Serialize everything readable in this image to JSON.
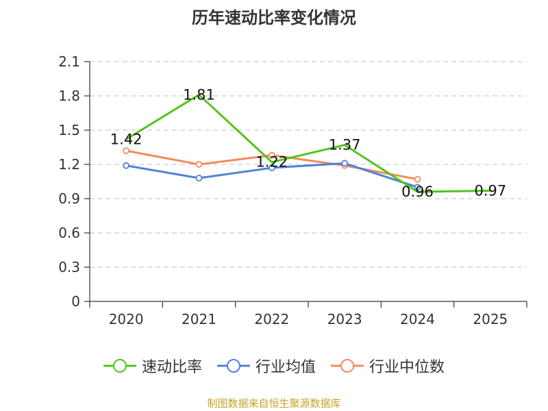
{
  "chart_data": {
    "type": "line",
    "title": "历年速动比率变化情况",
    "categories": [
      "2020",
      "2021",
      "2022",
      "2023",
      "2024",
      "2025"
    ],
    "y_ticks": [
      "0",
      "0.3",
      "0.6",
      "0.9",
      "1.2",
      "1.5",
      "1.8",
      "2.1"
    ],
    "ylim": [
      0,
      2.1
    ],
    "grid": true,
    "legend_position": "bottom",
    "series": [
      {
        "name": "速动比率",
        "color": "#52c41a",
        "values": [
          1.42,
          1.81,
          1.22,
          1.37,
          0.96,
          0.97
        ],
        "labels": [
          "1.42",
          "1.81",
          "1.22",
          "1.37",
          "0.96",
          "0.97"
        ],
        "markers": false
      },
      {
        "name": "行业均值",
        "color": "#4f81d9",
        "values": [
          1.19,
          1.08,
          1.17,
          1.21,
          1.0,
          null
        ],
        "markers": true
      },
      {
        "name": "行业中位数",
        "color": "#f28c5b",
        "values": [
          1.32,
          1.2,
          1.28,
          1.19,
          1.07,
          null
        ],
        "markers": true
      }
    ]
  },
  "source_note": "制图数据来自恒生聚源数据库"
}
